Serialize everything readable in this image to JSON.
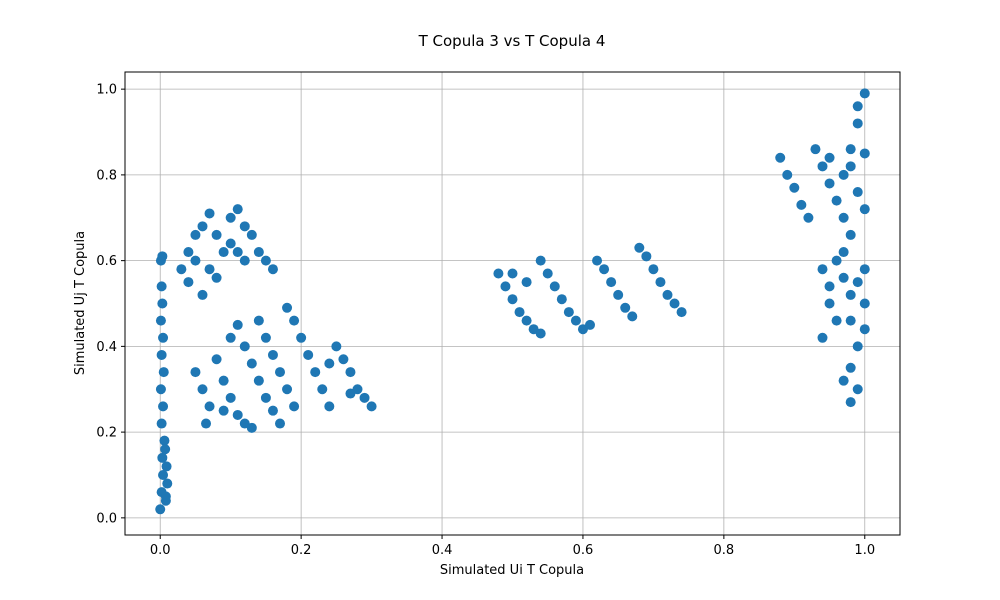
{
  "chart_data": {
    "type": "scatter",
    "title": "T Copula 3 vs T Copula 4",
    "xlabel": "Simulated Ui T Copula",
    "ylabel": "Simulated Uj T Copula",
    "xlim": [
      -0.05,
      1.05
    ],
    "ylim": [
      -0.04,
      1.04
    ],
    "xticks": [
      0.0,
      0.2,
      0.4,
      0.6,
      0.8,
      1.0
    ],
    "yticks": [
      0.0,
      0.2,
      0.4,
      0.6,
      0.8,
      1.0
    ],
    "xtick_labels": [
      "0.0",
      "0.2",
      "0.4",
      "0.6",
      "0.8",
      "1.0"
    ],
    "ytick_labels": [
      "0.0",
      "0.2",
      "0.4",
      "0.6",
      "0.8",
      "1.0"
    ],
    "grid": true,
    "marker_color": "#1f77b4",
    "points": [
      [
        0.0,
        0.02
      ],
      [
        0.002,
        0.06
      ],
      [
        0.004,
        0.1
      ],
      [
        0.003,
        0.14
      ],
      [
        0.006,
        0.18
      ],
      [
        0.002,
        0.22
      ],
      [
        0.004,
        0.26
      ],
      [
        0.001,
        0.3
      ],
      [
        0.005,
        0.34
      ],
      [
        0.002,
        0.38
      ],
      [
        0.004,
        0.42
      ],
      [
        0.001,
        0.46
      ],
      [
        0.003,
        0.5
      ],
      [
        0.002,
        0.54
      ],
      [
        0.001,
        0.6
      ],
      [
        0.003,
        0.61
      ],
      [
        0.008,
        0.04
      ],
      [
        0.01,
        0.08
      ],
      [
        0.009,
        0.12
      ],
      [
        0.007,
        0.16
      ],
      [
        0.008,
        0.05
      ],
      [
        0.03,
        0.58
      ],
      [
        0.04,
        0.62
      ],
      [
        0.05,
        0.66
      ],
      [
        0.06,
        0.68
      ],
      [
        0.04,
        0.55
      ],
      [
        0.06,
        0.52
      ],
      [
        0.07,
        0.58
      ],
      [
        0.08,
        0.56
      ],
      [
        0.05,
        0.6
      ],
      [
        0.09,
        0.62
      ],
      [
        0.08,
        0.66
      ],
      [
        0.1,
        0.7
      ],
      [
        0.11,
        0.72
      ],
      [
        0.12,
        0.68
      ],
      [
        0.13,
        0.66
      ],
      [
        0.11,
        0.62
      ],
      [
        0.12,
        0.6
      ],
      [
        0.14,
        0.62
      ],
      [
        0.15,
        0.6
      ],
      [
        0.16,
        0.58
      ],
      [
        0.07,
        0.71
      ],
      [
        0.1,
        0.64
      ],
      [
        0.05,
        0.34
      ],
      [
        0.06,
        0.3
      ],
      [
        0.07,
        0.26
      ],
      [
        0.065,
        0.22
      ],
      [
        0.08,
        0.37
      ],
      [
        0.09,
        0.32
      ],
      [
        0.1,
        0.28
      ],
      [
        0.11,
        0.24
      ],
      [
        0.12,
        0.22
      ],
      [
        0.13,
        0.21
      ],
      [
        0.09,
        0.25
      ],
      [
        0.1,
        0.42
      ],
      [
        0.11,
        0.45
      ],
      [
        0.12,
        0.4
      ],
      [
        0.13,
        0.36
      ],
      [
        0.14,
        0.32
      ],
      [
        0.15,
        0.28
      ],
      [
        0.16,
        0.25
      ],
      [
        0.14,
        0.46
      ],
      [
        0.15,
        0.42
      ],
      [
        0.16,
        0.38
      ],
      [
        0.17,
        0.34
      ],
      [
        0.18,
        0.3
      ],
      [
        0.19,
        0.26
      ],
      [
        0.17,
        0.22
      ],
      [
        0.18,
        0.49
      ],
      [
        0.19,
        0.46
      ],
      [
        0.2,
        0.42
      ],
      [
        0.21,
        0.38
      ],
      [
        0.22,
        0.34
      ],
      [
        0.23,
        0.3
      ],
      [
        0.24,
        0.26
      ],
      [
        0.25,
        0.4
      ],
      [
        0.26,
        0.37
      ],
      [
        0.27,
        0.34
      ],
      [
        0.28,
        0.3
      ],
      [
        0.29,
        0.28
      ],
      [
        0.3,
        0.26
      ],
      [
        0.27,
        0.29
      ],
      [
        0.24,
        0.36
      ],
      [
        0.48,
        0.57
      ],
      [
        0.49,
        0.54
      ],
      [
        0.5,
        0.51
      ],
      [
        0.51,
        0.48
      ],
      [
        0.52,
        0.46
      ],
      [
        0.53,
        0.44
      ],
      [
        0.54,
        0.43
      ],
      [
        0.5,
        0.57
      ],
      [
        0.52,
        0.55
      ],
      [
        0.54,
        0.6
      ],
      [
        0.55,
        0.57
      ],
      [
        0.56,
        0.54
      ],
      [
        0.57,
        0.51
      ],
      [
        0.58,
        0.48
      ],
      [
        0.59,
        0.46
      ],
      [
        0.6,
        0.44
      ],
      [
        0.61,
        0.45
      ],
      [
        0.62,
        0.6
      ],
      [
        0.63,
        0.58
      ],
      [
        0.64,
        0.55
      ],
      [
        0.65,
        0.52
      ],
      [
        0.66,
        0.49
      ],
      [
        0.67,
        0.47
      ],
      [
        0.68,
        0.63
      ],
      [
        0.69,
        0.61
      ],
      [
        0.7,
        0.58
      ],
      [
        0.71,
        0.55
      ],
      [
        0.72,
        0.52
      ],
      [
        0.73,
        0.5
      ],
      [
        0.74,
        0.48
      ],
      [
        0.88,
        0.84
      ],
      [
        0.89,
        0.8
      ],
      [
        0.9,
        0.77
      ],
      [
        0.91,
        0.73
      ],
      [
        0.92,
        0.7
      ],
      [
        0.93,
        0.86
      ],
      [
        0.94,
        0.82
      ],
      [
        0.95,
        0.78
      ],
      [
        0.96,
        0.74
      ],
      [
        0.95,
        0.84
      ],
      [
        0.97,
        0.8
      ],
      [
        0.98,
        0.86
      ],
      [
        0.99,
        0.92
      ],
      [
        1.0,
        0.99
      ],
      [
        0.99,
        0.96
      ],
      [
        0.98,
        0.82
      ],
      [
        0.97,
        0.7
      ],
      [
        0.98,
        0.66
      ],
      [
        0.99,
        0.76
      ],
      [
        1.0,
        0.85
      ],
      [
        1.0,
        0.72
      ],
      [
        0.94,
        0.58
      ],
      [
        0.95,
        0.54
      ],
      [
        0.95,
        0.5
      ],
      [
        0.96,
        0.46
      ],
      [
        0.94,
        0.42
      ],
      [
        0.96,
        0.6
      ],
      [
        0.97,
        0.56
      ],
      [
        0.98,
        0.52
      ],
      [
        0.98,
        0.46
      ],
      [
        0.99,
        0.4
      ],
      [
        0.98,
        0.35
      ],
      [
        0.99,
        0.3
      ],
      [
        0.98,
        0.27
      ],
      [
        1.0,
        0.44
      ],
      [
        1.0,
        0.5
      ],
      [
        0.99,
        0.55
      ],
      [
        1.0,
        0.58
      ],
      [
        0.97,
        0.62
      ],
      [
        0.97,
        0.32
      ]
    ]
  }
}
